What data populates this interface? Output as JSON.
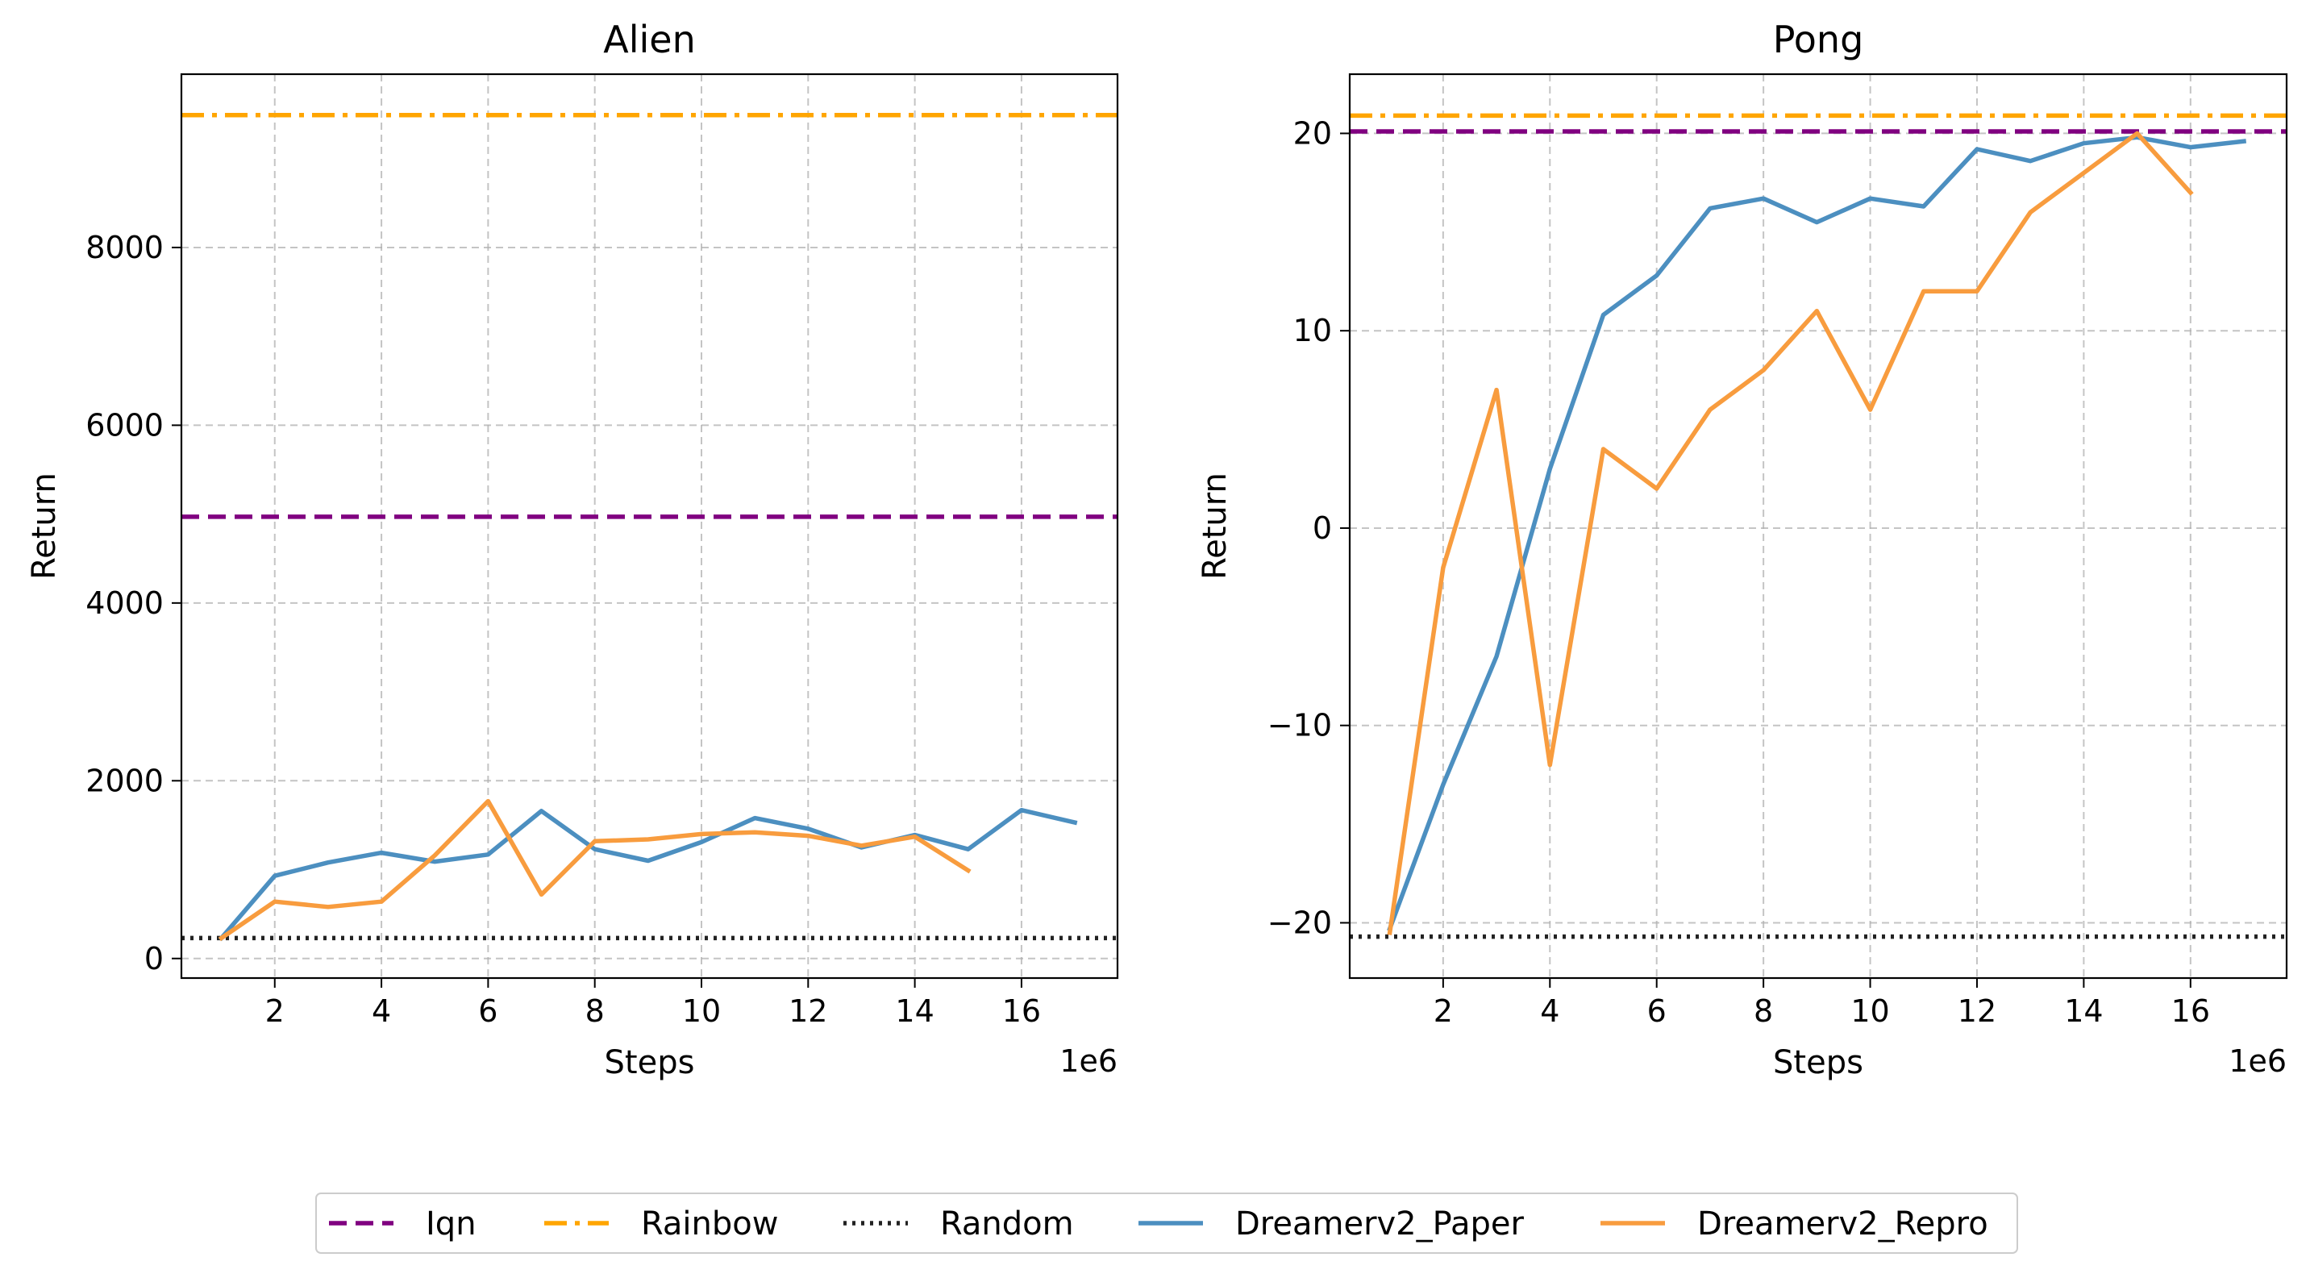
{
  "chart_data": [
    {
      "type": "line",
      "title": "Alien",
      "xlabel": "Steps",
      "ylabel": "Return",
      "x_offset_label": "1e6",
      "xlim": [
        0.25,
        17.8
      ],
      "ylim": [
        -220,
        9950
      ],
      "xticks": [
        2,
        4,
        6,
        8,
        10,
        12,
        14,
        16
      ],
      "xtick_labels": [
        "2",
        "4",
        "6",
        "8",
        "10",
        "12",
        "14",
        "16"
      ],
      "yticks": [
        0,
        2000,
        4000,
        6000,
        8000
      ],
      "ytick_labels": [
        "0",
        "2000",
        "4000",
        "6000",
        "8000"
      ],
      "grid": true,
      "baselines": [
        {
          "name": "Iqn",
          "value": 4970,
          "color": "#800080",
          "style": "dashed"
        },
        {
          "name": "Rainbow",
          "value": 9490,
          "color": "#FFA500",
          "style": "dashdot"
        },
        {
          "name": "Random",
          "value": 230,
          "color": "#222222",
          "style": "dotted"
        }
      ],
      "series": [
        {
          "name": "Dreamerv2_Paper",
          "color": "#4C8FC0",
          "x": [
            1,
            2,
            3,
            4,
            5,
            6,
            7,
            8,
            9,
            10,
            11,
            12,
            13,
            14,
            15,
            16,
            17
          ],
          "values": [
            230,
            930,
            1080,
            1190,
            1090,
            1170,
            1660,
            1230,
            1100,
            1310,
            1580,
            1460,
            1250,
            1390,
            1230,
            1670,
            1530
          ]
        },
        {
          "name": "Dreamerv2_Repro",
          "color": "#F89C3E",
          "x": [
            1,
            2,
            3,
            4,
            5,
            6,
            7,
            8,
            9,
            10,
            11,
            12,
            13,
            14,
            15
          ],
          "values": [
            230,
            640,
            580,
            640,
            1160,
            1770,
            720,
            1320,
            1340,
            1400,
            1420,
            1380,
            1270,
            1370,
            990
          ]
        }
      ]
    },
    {
      "type": "line",
      "title": "Pong",
      "xlabel": "Steps",
      "ylabel": "Return",
      "x_offset_label": "1e6",
      "xlim": [
        0.25,
        17.8
      ],
      "ylim": [
        -22.8,
        23
      ],
      "xticks": [
        2,
        4,
        6,
        8,
        10,
        12,
        14,
        16
      ],
      "xtick_labels": [
        "2",
        "4",
        "6",
        "8",
        "10",
        "12",
        "14",
        "16"
      ],
      "yticks": [
        -20,
        -10,
        0,
        10,
        20
      ],
      "ytick_labels": [
        "−20",
        "−10",
        "0",
        "10",
        "20"
      ],
      "grid": true,
      "baselines": [
        {
          "name": "Iqn",
          "value": 20.1,
          "color": "#800080",
          "style": "dashed"
        },
        {
          "name": "Rainbow",
          "value": 20.9,
          "color": "#FFA500",
          "style": "dashdot"
        },
        {
          "name": "Random",
          "value": -20.7,
          "color": "#222222",
          "style": "dotted"
        }
      ],
      "series": [
        {
          "name": "Dreamerv2_Paper",
          "color": "#4C8FC0",
          "x": [
            1,
            2,
            3,
            4,
            5,
            6,
            7,
            8,
            9,
            10,
            11,
            12,
            13,
            14,
            15,
            16,
            17
          ],
          "values": [
            -20.3,
            -13,
            -6.5,
            3,
            10.8,
            12.8,
            16.2,
            16.7,
            15.5,
            16.7,
            16.3,
            19.2,
            18.6,
            19.5,
            19.8,
            19.3,
            19.6
          ]
        },
        {
          "name": "Dreamerv2_Repro",
          "color": "#F89C3E",
          "x": [
            1,
            2,
            3,
            4,
            5,
            6,
            7,
            8,
            9,
            10,
            11,
            12,
            13,
            14,
            15,
            16
          ],
          "values": [
            -20.5,
            -2,
            7,
            -12,
            4,
            2,
            6,
            8,
            11,
            6,
            12,
            12,
            16,
            18,
            20,
            17
          ]
        }
      ]
    }
  ],
  "legend": {
    "placement": "bottom-center",
    "entries": [
      {
        "label": "Iqn",
        "color": "#800080",
        "style": "dashed"
      },
      {
        "label": "Rainbow",
        "color": "#FFA500",
        "style": "dashdot"
      },
      {
        "label": "Random",
        "color": "#222222",
        "style": "dotted"
      },
      {
        "label": "Dreamerv2_Paper",
        "color": "#4C8FC0",
        "style": "solid"
      },
      {
        "label": "Dreamerv2_Repro",
        "color": "#F89C3E",
        "style": "solid"
      }
    ]
  }
}
